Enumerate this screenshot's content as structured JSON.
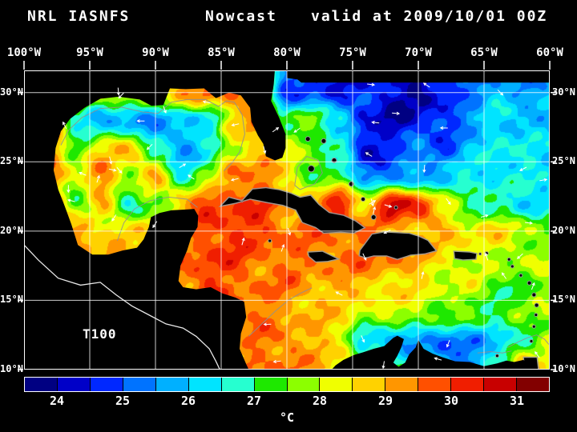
{
  "title": {
    "left": "NRL IASNFS",
    "center": "Nowcast",
    "right": "valid at 2009/10/01 00Z"
  },
  "map": {
    "region_label": "T100",
    "background": "#000000",
    "grid_color": "#ffffff",
    "coastline_color": "#e8e8e8",
    "contour_color": "#909090",
    "vector_color": "#ffffff"
  },
  "axes": {
    "top": [
      "100°W",
      "95°W",
      "90°W",
      "85°W",
      "80°W",
      "75°W",
      "70°W",
      "65°W",
      "60°W"
    ],
    "left": [
      "30°N",
      "25°N",
      "20°N",
      "15°N",
      "10°N"
    ],
    "right": [
      "30°N",
      "25°N",
      "20°N",
      "15°N",
      "10°N"
    ]
  },
  "colorbar": {
    "tick_labels": [
      "24",
      "25",
      "26",
      "27",
      "28",
      "29",
      "30",
      "31"
    ],
    "unit": "°C",
    "value_min": 23.5,
    "value_max": 31.5,
    "colors": [
      "#000082",
      "#0000c8",
      "#0028ff",
      "#0073ff",
      "#00b0ff",
      "#00e4ff",
      "#26ffd0",
      "#1ee800",
      "#8cff00",
      "#f0ff00",
      "#ffd200",
      "#ff9600",
      "#ff5000",
      "#f01e00",
      "#c80000",
      "#820000"
    ]
  },
  "chart_data": {
    "type": "heatmap",
    "title": "NRL IASNFS Nowcast valid at 2009/10/01 00Z",
    "field": "T100 temperature at 100 m (°C)",
    "units": "°C",
    "lon_range_w": [
      100,
      60
    ],
    "lat_range_n": [
      10,
      31.6
    ],
    "x_lon_w": [
      100,
      98,
      96,
      94,
      92,
      90,
      88,
      86,
      84,
      82,
      80,
      78,
      76,
      74,
      72,
      70,
      68,
      66,
      64,
      62,
      60
    ],
    "y_lat_n": [
      32,
      30,
      28,
      26,
      24,
      22,
      20,
      18,
      16,
      14,
      12,
      10
    ],
    "values_degc": [
      [
        29,
        29.5,
        29,
        28.5,
        28,
        28.5,
        29,
        29.5,
        29.5,
        28.5,
        25,
        24.8,
        24.5,
        24.8,
        24.5,
        24.2,
        24.5,
        25,
        25.2,
        25.5,
        25.2
      ],
      [
        29,
        29.5,
        29,
        28.5,
        28,
        28.5,
        29,
        29.5,
        29.5,
        28.5,
        25,
        24.8,
        24.5,
        24.8,
        24.2,
        24,
        24.5,
        25.5,
        26,
        25.5,
        26
      ],
      [
        29.5,
        29,
        26.5,
        25.5,
        25.5,
        25.5,
        26,
        26.5,
        28.5,
        29.5,
        27,
        27.5,
        26.5,
        24.5,
        24,
        24.3,
        24.8,
        25.5,
        26.2,
        26.2,
        25.8
      ],
      [
        29.5,
        29.5,
        27.5,
        28.5,
        29,
        26.5,
        25.5,
        26.5,
        28,
        29,
        28,
        27.5,
        26.5,
        24.2,
        25,
        25.5,
        25,
        25.8,
        26.5,
        26.4,
        26
      ],
      [
        29.5,
        29.5,
        28,
        29.5,
        28,
        29,
        26.5,
        27.5,
        29.5,
        29.5,
        28.5,
        27.5,
        27,
        25.5,
        25,
        25.5,
        26,
        26.5,
        26.5,
        26.5,
        26.2
      ],
      [
        29.5,
        29.5,
        27,
        29,
        26.5,
        27.5,
        29,
        30,
        30,
        30,
        29,
        28.5,
        30.6,
        28.5,
        30.8,
        30.3,
        28,
        27,
        26.8,
        26.2,
        26.5
      ],
      [
        29,
        29,
        29.5,
        28.5,
        28.5,
        29,
        29,
        30,
        30,
        30,
        29.5,
        29.5,
        29.5,
        29.5,
        29,
        29,
        29,
        28.5,
        28.5,
        28,
        27.5
      ],
      [
        29,
        29,
        29,
        29,
        29,
        29,
        29.5,
        30,
        30,
        29.5,
        29.5,
        29.5,
        29.5,
        29.5,
        29.5,
        29,
        28.5,
        28,
        28,
        28,
        27.8
      ],
      [
        29,
        29,
        29,
        29,
        29,
        29,
        29.5,
        30,
        29.5,
        29.5,
        29.5,
        29,
        29,
        29,
        28.5,
        28.5,
        28,
        28,
        27.5,
        27,
        28
      ],
      [
        29,
        29,
        29,
        29,
        29,
        29,
        29,
        29.5,
        29.5,
        29.5,
        29,
        29,
        28.5,
        28,
        28,
        28,
        27.5,
        27.5,
        27,
        27.5,
        28
      ],
      [
        29,
        29,
        29,
        29,
        29,
        29,
        29,
        29.5,
        29,
        29.5,
        29.5,
        29,
        28.5,
        26,
        25.5,
        25.5,
        25,
        25.5,
        26,
        27,
        28
      ],
      [
        29,
        29,
        29,
        29,
        29,
        29,
        29,
        29.5,
        29.5,
        29.5,
        29.5,
        29,
        28.5,
        28,
        27.5,
        27,
        26,
        25.5,
        26.5,
        29.5,
        28.5
      ]
    ]
  }
}
